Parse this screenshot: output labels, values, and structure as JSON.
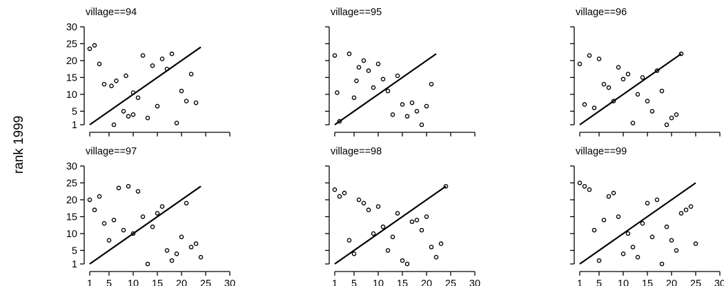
{
  "figure": {
    "ylabel": "rank 1999"
  },
  "chart_data": {
    "type": "scatter",
    "ylabel": "rank 1999",
    "xlabel": "",
    "xlim": [
      1,
      30
    ],
    "ylim": [
      1,
      30
    ],
    "x_ticks": [
      1,
      5,
      10,
      15,
      20,
      25,
      30
    ],
    "y_ticks": [
      1,
      5,
      10,
      15,
      20,
      25,
      30
    ],
    "panels": [
      {
        "title": "village==94",
        "show_x_tick_labels": false,
        "reference_line_x": [
          1,
          24
        ],
        "points": [
          [
            1,
            23.5
          ],
          [
            2,
            24.5
          ],
          [
            3,
            19
          ],
          [
            4,
            13
          ],
          [
            5.5,
            12.5
          ],
          [
            6.5,
            14
          ],
          [
            8,
            5
          ],
          [
            8.5,
            15.5
          ],
          [
            9,
            3.5
          ],
          [
            10,
            10.5
          ],
          [
            10,
            4
          ],
          [
            11,
            9
          ],
          [
            12,
            21.5
          ],
          [
            13,
            3
          ],
          [
            14,
            18.5
          ],
          [
            15,
            6.5
          ],
          [
            16,
            20.5
          ],
          [
            17,
            17.5
          ],
          [
            18,
            22
          ],
          [
            19,
            1.5
          ],
          [
            20,
            11
          ],
          [
            21,
            8
          ],
          [
            22,
            16
          ],
          [
            23,
            7.5
          ],
          [
            6,
            1
          ]
        ]
      },
      {
        "title": "village==95",
        "show_x_tick_labels": false,
        "reference_line_x": [
          1,
          22
        ],
        "points": [
          [
            1,
            21.5
          ],
          [
            1.5,
            10.5
          ],
          [
            2,
            2
          ],
          [
            4,
            22
          ],
          [
            5,
            9
          ],
          [
            5.5,
            14
          ],
          [
            6,
            18
          ],
          [
            7,
            20
          ],
          [
            8,
            17
          ],
          [
            9,
            12
          ],
          [
            10,
            19
          ],
          [
            11,
            14.5
          ],
          [
            12,
            11
          ],
          [
            13,
            4
          ],
          [
            14,
            15.5
          ],
          [
            15,
            7
          ],
          [
            16,
            3.5
          ],
          [
            17,
            7.5
          ],
          [
            18,
            5
          ],
          [
            19,
            1
          ],
          [
            20,
            6.5
          ],
          [
            21,
            13
          ]
        ]
      },
      {
        "title": "village==96",
        "show_x_tick_labels": false,
        "reference_line_x": [
          1,
          22
        ],
        "points": [
          [
            1,
            19
          ],
          [
            2,
            7
          ],
          [
            3,
            21.5
          ],
          [
            4,
            6
          ],
          [
            5,
            20.5
          ],
          [
            6,
            13
          ],
          [
            7,
            12
          ],
          [
            8,
            8
          ],
          [
            9,
            18
          ],
          [
            10,
            14.5
          ],
          [
            11,
            16
          ],
          [
            12,
            1.5
          ],
          [
            13,
            10
          ],
          [
            14,
            15
          ],
          [
            15,
            8
          ],
          [
            16,
            5
          ],
          [
            17,
            17
          ],
          [
            18,
            11
          ],
          [
            19,
            1
          ],
          [
            20,
            3
          ],
          [
            21,
            4
          ],
          [
            22,
            22
          ]
        ]
      },
      {
        "title": "village==97",
        "show_x_tick_labels": true,
        "reference_line_x": [
          1,
          24
        ],
        "points": [
          [
            1,
            20
          ],
          [
            2,
            17
          ],
          [
            3,
            21
          ],
          [
            4,
            13
          ],
          [
            5,
            8
          ],
          [
            6,
            14
          ],
          [
            7,
            23.5
          ],
          [
            8,
            11
          ],
          [
            9,
            24
          ],
          [
            10,
            10
          ],
          [
            11,
            22.5
          ],
          [
            12,
            15
          ],
          [
            13,
            1
          ],
          [
            14,
            12
          ],
          [
            15,
            16
          ],
          [
            16,
            18
          ],
          [
            17,
            5
          ],
          [
            18,
            2
          ],
          [
            19,
            4
          ],
          [
            20,
            9
          ],
          [
            21,
            19
          ],
          [
            22,
            6
          ],
          [
            23,
            7
          ],
          [
            24,
            3
          ]
        ]
      },
      {
        "title": "village==98",
        "show_x_tick_labels": true,
        "reference_line_x": [
          1,
          24
        ],
        "points": [
          [
            1,
            23
          ],
          [
            2,
            21
          ],
          [
            3,
            22
          ],
          [
            4,
            8
          ],
          [
            5,
            4
          ],
          [
            6,
            20
          ],
          [
            7,
            19
          ],
          [
            8,
            17
          ],
          [
            9,
            10
          ],
          [
            10,
            18
          ],
          [
            11,
            12
          ],
          [
            12,
            5
          ],
          [
            13,
            9
          ],
          [
            14,
            16
          ],
          [
            15,
            2
          ],
          [
            16,
            1
          ],
          [
            17,
            13.5
          ],
          [
            18,
            14
          ],
          [
            19,
            11
          ],
          [
            20,
            15
          ],
          [
            21,
            6
          ],
          [
            22,
            3
          ],
          [
            23,
            7
          ],
          [
            24,
            24
          ]
        ]
      },
      {
        "title": "village==99",
        "show_x_tick_labels": true,
        "reference_line_x": [
          1,
          25
        ],
        "points": [
          [
            1,
            25
          ],
          [
            2,
            24
          ],
          [
            3,
            23
          ],
          [
            4,
            11
          ],
          [
            5,
            2
          ],
          [
            6,
            14
          ],
          [
            7,
            21
          ],
          [
            8,
            22
          ],
          [
            9,
            15
          ],
          [
            10,
            4
          ],
          [
            11,
            10
          ],
          [
            12,
            6
          ],
          [
            13,
            3
          ],
          [
            14,
            13
          ],
          [
            15,
            19
          ],
          [
            16,
            9
          ],
          [
            17,
            20
          ],
          [
            18,
            1
          ],
          [
            19,
            12
          ],
          [
            20,
            8
          ],
          [
            21,
            5
          ],
          [
            22,
            16
          ],
          [
            23,
            17
          ],
          [
            24,
            18
          ],
          [
            25,
            7
          ]
        ]
      }
    ]
  }
}
